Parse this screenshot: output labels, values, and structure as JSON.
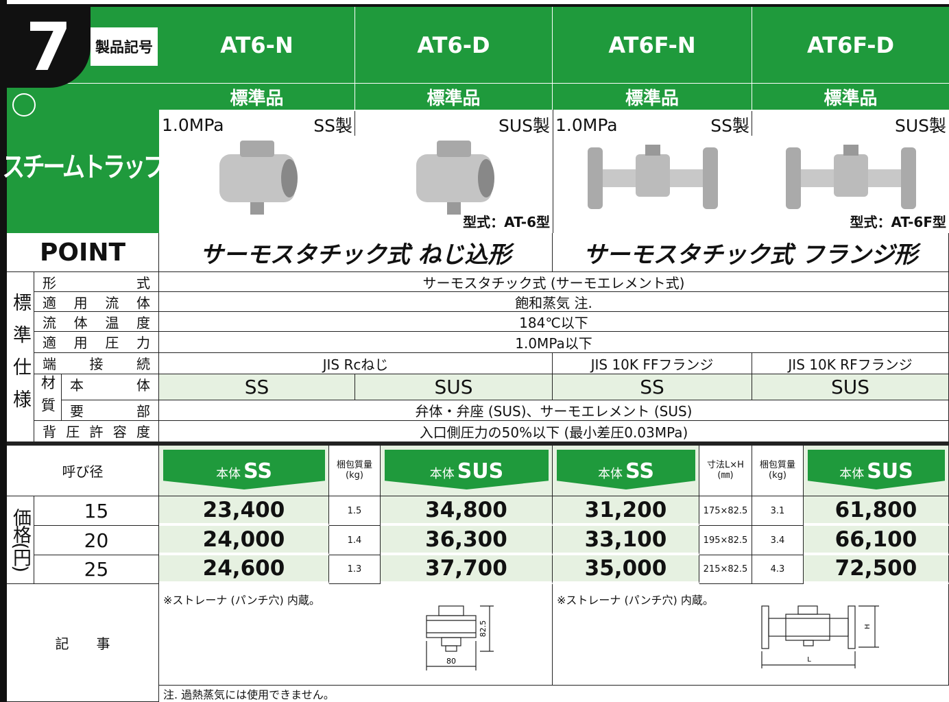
{
  "header": {
    "number": "7",
    "code_label": "製品記号",
    "category": "スチームトラップ"
  },
  "models": [
    {
      "code": "AT6-N",
      "standard": "標準品",
      "pressure": "1.0MPa",
      "material": "SS製"
    },
    {
      "code": "AT6-D",
      "standard": "標準品",
      "material": "SUS製",
      "type": "型式：AT-6型"
    },
    {
      "code": "AT6F-N",
      "standard": "標準品",
      "pressure": "1.0MPa",
      "material": "SS製"
    },
    {
      "code": "AT6F-D",
      "standard": "標準品",
      "material": "SUS製",
      "type": "型式：AT-6F型"
    }
  ],
  "point": {
    "label": "POINT",
    "items": [
      "サーモスタチック式 ねじ込形",
      "サーモスタチック式 フランジ形"
    ]
  },
  "specs": {
    "side_label": "標準仕様",
    "material_label": "材質",
    "rows": [
      {
        "label": "形式",
        "value": "サーモスタチック式 (サーモエレメント式)"
      },
      {
        "label": "適用流体",
        "value": "飽和蒸気 注."
      },
      {
        "label": "流体温度",
        "value": "184℃以下"
      },
      {
        "label": "適用圧力",
        "value": "1.0MPa以下"
      },
      {
        "label": "端接続",
        "values": [
          "JIS Rcねじ",
          "JIS 10K FFフランジ",
          "JIS 10K RFフランジ"
        ]
      },
      {
        "label": "本体",
        "values": [
          "SS",
          "SUS",
          "SS",
          "SUS"
        ]
      },
      {
        "label": "要部",
        "value": "弁体・弁座 (SUS)、サーモエレメント (SUS)"
      },
      {
        "label": "背圧許容度",
        "value": "入口側圧力の50%以下 (最小差圧0.03MPa)"
      }
    ]
  },
  "price": {
    "size_label": "呼び径",
    "side_label": "価格(円)",
    "columns": [
      {
        "prefix": "本体",
        "material": "SS"
      },
      {
        "label": "梱包質量",
        "unit": "(kg)"
      },
      {
        "prefix": "本体",
        "material": "SUS"
      },
      {
        "prefix": "本体",
        "material": "SS"
      },
      {
        "label": "寸法L×H",
        "unit": "(㎜)"
      },
      {
        "label": "梱包質量",
        "unit": "(kg)"
      },
      {
        "prefix": "本体",
        "material": "SUS"
      }
    ],
    "rows": [
      {
        "size": "15",
        "cells": [
          "23,400",
          "1.5",
          "34,800",
          "31,200",
          "175×82.5",
          "3.1",
          "61,800"
        ]
      },
      {
        "size": "20",
        "cells": [
          "24,000",
          "1.4",
          "36,300",
          "33,100",
          "195×82.5",
          "3.4",
          "66,100"
        ]
      },
      {
        "size": "25",
        "cells": [
          "24,600",
          "1.3",
          "37,700",
          "35,000",
          "215×82.5",
          "4.3",
          "72,500"
        ]
      }
    ]
  },
  "notes": {
    "label": "記事",
    "items": [
      "※ストレーナ (パンチ穴) 内蔵。",
      "※ストレーナ (パンチ穴) 内蔵。"
    ],
    "diagram1": {
      "height": "82.5",
      "width": "80"
    },
    "diagram2": {
      "height": "H",
      "length": "L"
    },
    "footnote": "注.  過熱蒸気には使用できません。"
  }
}
